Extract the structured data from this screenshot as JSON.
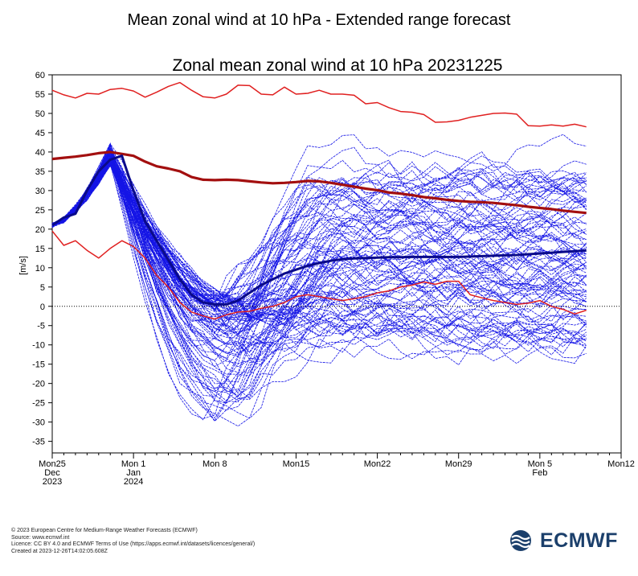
{
  "page": {
    "title": "Mean zonal wind at 10 hPa - Extended range forecast"
  },
  "footer": {
    "lines": [
      "© 2023 European Centre for Medium-Range Weather Forecasts (ECMWF)",
      "Source: www.ecmwf.int",
      "Licence: CC BY 4.0 and ECMWF Terms of Use (https://apps.ecmwf.int/datasets/licences/general/)",
      "Created at 2023-12-26T14:02:05.608Z"
    ],
    "logo_text": "ECMWF"
  },
  "colors": {
    "ensemble": "#1515e6",
    "ensemble_mean": "#0a0a8a",
    "climatology": "#e02020",
    "climatology_mean": "#a30f0f",
    "zero_line": "#000000",
    "logo": "#1b3f6b"
  },
  "chart_data": {
    "type": "line",
    "title": "Zonal mean zonal wind at 10 hPa 20231225",
    "ylabel": "[m/s]",
    "xlabel": "",
    "xlim": [
      0,
      49
    ],
    "ylim": [
      -38,
      60
    ],
    "yticks": [
      60,
      55,
      50,
      45,
      40,
      35,
      30,
      25,
      20,
      15,
      10,
      5,
      0,
      -5,
      -10,
      -15,
      -20,
      -25,
      -30,
      -35
    ],
    "xticks": [
      {
        "day": 0,
        "label": "Mon25",
        "sub": [
          "Dec",
          "2023"
        ]
      },
      {
        "day": 7,
        "label": "Mon 1",
        "sub": [
          "Jan",
          "2024"
        ]
      },
      {
        "day": 14,
        "label": "Mon 8",
        "sub": []
      },
      {
        "day": 21,
        "label": "Mon15",
        "sub": []
      },
      {
        "day": 28,
        "label": "Mon22",
        "sub": []
      },
      {
        "day": 35,
        "label": "Mon29",
        "sub": []
      },
      {
        "day": 42,
        "label": "Mon 5",
        "sub": [
          "Feb"
        ]
      },
      {
        "day": 49,
        "label": "Mon12",
        "sub": []
      }
    ],
    "zero_line": {
      "y": 0,
      "style": "dotted"
    },
    "x_days": [
      0,
      1,
      2,
      3,
      4,
      5,
      6,
      7,
      8,
      9,
      10,
      11,
      12,
      13,
      14,
      15,
      16,
      17,
      18,
      19,
      20,
      21,
      22,
      23,
      24,
      25,
      26,
      27,
      28,
      29,
      30,
      31,
      32,
      33,
      34,
      35,
      36,
      37,
      38,
      39,
      40,
      41,
      42,
      43,
      44,
      45,
      46
    ],
    "series": [
      {
        "role": "climatology_max",
        "values": [
          56,
          54.8,
          54,
          55.2,
          55,
          56.2,
          56.5,
          55.8,
          54.2,
          55.5,
          57,
          58,
          56,
          54.3,
          54,
          55,
          57.3,
          57.2,
          55,
          54.8,
          56.8,
          55,
          55.2,
          56,
          55,
          55,
          54.7,
          52.5,
          52.8,
          51.5,
          50.5,
          50.3,
          49.7,
          47.7,
          47.8,
          48.2,
          49,
          49.5,
          50,
          50.1,
          49.8,
          46.8,
          46.7,
          47,
          46.7,
          47.2,
          46.5
        ]
      },
      {
        "role": "climatology_min",
        "values": [
          19.5,
          15.8,
          17,
          14.5,
          12.5,
          15,
          17,
          15.5,
          12.5,
          8,
          5,
          1,
          -1.5,
          -2.5,
          -3.3,
          -2.2,
          -1.5,
          -1.3,
          -0.5,
          0,
          1,
          2.5,
          3,
          2.5,
          2,
          1.5,
          2,
          2.5,
          3.5,
          4,
          5,
          5.5,
          6.3,
          5.7,
          6.5,
          6.5,
          3,
          2.2,
          1.5,
          1,
          0.5,
          0.8,
          1.5,
          0,
          -0.8,
          -2,
          -1
        ]
      },
      {
        "role": "climatology_mean",
        "values": [
          38.2,
          38.5,
          38.8,
          39.2,
          39.7,
          40,
          39.5,
          39,
          37.5,
          36.3,
          35.7,
          35,
          33.5,
          32.8,
          32.7,
          32.8,
          32.7,
          32.4,
          32.1,
          31.9,
          32,
          32.2,
          32.5,
          32.4,
          32,
          31.5,
          31,
          30.5,
          30.1,
          29.5,
          29.2,
          28.8,
          28.3,
          28,
          27.6,
          27.3,
          27.1,
          27,
          26.8,
          26.5,
          26.2,
          25.8,
          25.5,
          25.2,
          24.8,
          24.5,
          24.2
        ]
      },
      {
        "role": "ensemble_mean",
        "values": [
          21,
          23,
          24,
          30,
          35,
          38,
          39,
          30,
          22,
          17,
          12,
          7,
          3,
          1,
          0.5,
          0.5,
          1.5,
          3.5,
          5.5,
          7,
          8.5,
          9.5,
          10.5,
          11.2,
          11.8,
          12.2,
          12.4,
          12.5,
          12.6,
          12.7,
          12.7,
          12.8,
          12.8,
          12.8,
          12.8,
          12.8,
          12.9,
          13,
          13.1,
          13.2,
          13.3,
          13.5,
          13.7,
          13.9,
          14.1,
          14.3,
          14.5
        ]
      }
    ],
    "ensemble": {
      "members": 100,
      "start_value": 21,
      "peak_day": 5,
      "peak_range": [
        36.5,
        42.5
      ],
      "spread_after_day_14": [
        -37,
        48
      ]
    }
  }
}
